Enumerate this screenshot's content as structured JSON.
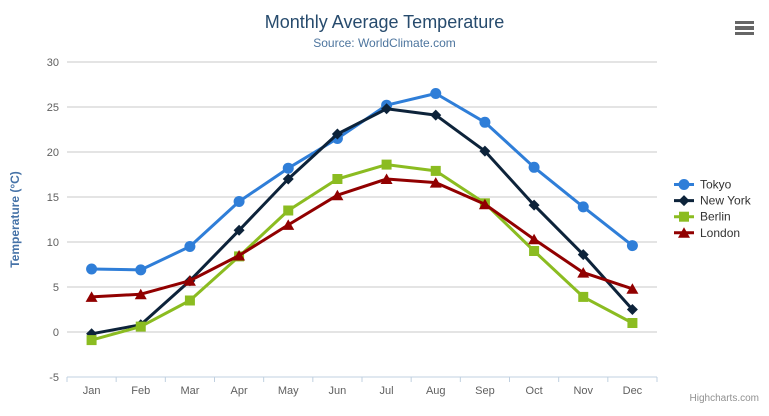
{
  "header": {
    "title": "Monthly Average Temperature",
    "subtitle": "Source: WorldClimate.com"
  },
  "export_menu": {
    "icon": "hamburger-icon"
  },
  "credit": "Highcharts.com",
  "chart_data": {
    "type": "line",
    "title": "Monthly Average Temperature",
    "subtitle": "Source: WorldClimate.com",
    "categories": [
      "Jan",
      "Feb",
      "Mar",
      "Apr",
      "May",
      "Jun",
      "Jul",
      "Aug",
      "Sep",
      "Oct",
      "Nov",
      "Dec"
    ],
    "xlabel": "",
    "ylabel": "Temperature (°C)",
    "ylim": [
      -5,
      30
    ],
    "ytick_interval": 5,
    "ytick_labels": [
      "-5",
      "0",
      "5",
      "10",
      "15",
      "20",
      "25",
      "30"
    ],
    "grid": true,
    "legend_position": "right",
    "series": [
      {
        "name": "Tokyo",
        "color": "#2f7ed8",
        "marker": "circle",
        "values": [
          7.0,
          6.9,
          9.5,
          14.5,
          18.2,
          21.5,
          25.2,
          26.5,
          23.3,
          18.3,
          13.9,
          9.6
        ]
      },
      {
        "name": "New York",
        "color": "#0d233a",
        "marker": "diamond",
        "values": [
          -0.2,
          0.8,
          5.7,
          11.3,
          17.0,
          22.0,
          24.8,
          24.1,
          20.1,
          14.1,
          8.6,
          2.5
        ]
      },
      {
        "name": "Berlin",
        "color": "#8bbc21",
        "marker": "square",
        "values": [
          -0.9,
          0.6,
          3.5,
          8.4,
          13.5,
          17.0,
          18.6,
          17.9,
          14.3,
          9.0,
          3.9,
          1.0
        ]
      },
      {
        "name": "London",
        "color": "#910000",
        "marker": "triangle",
        "values": [
          3.9,
          4.2,
          5.7,
          8.5,
          11.9,
          15.2,
          17.0,
          16.6,
          14.2,
          10.3,
          6.6,
          4.8
        ]
      }
    ],
    "palette": {
      "gridline": "#c8c8c8",
      "axis_line": "#c0d0e0",
      "tick_label": "#606060",
      "yaxis_title": "#4572a7",
      "legend_text": "#333333"
    }
  }
}
